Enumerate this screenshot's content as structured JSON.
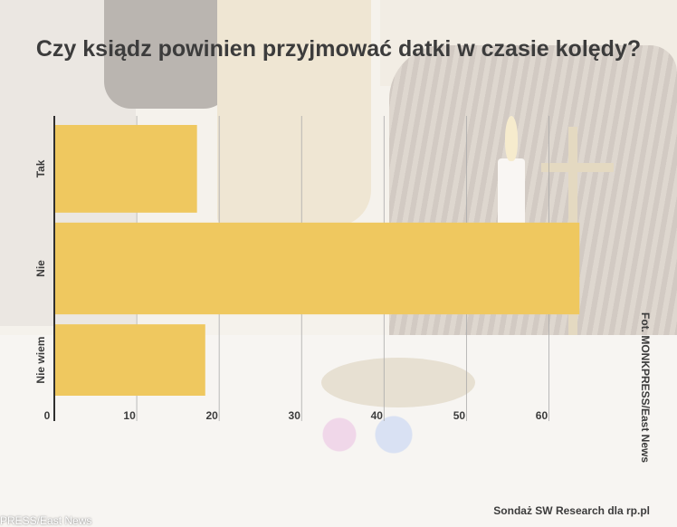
{
  "colors": {
    "bar": "#efc85f",
    "axis": "#2f2f2f",
    "grid": "#aaaaaa",
    "text": "#3c3c3c"
  },
  "photo_credit": "Fot. MONKPRESS/East News",
  "source": "Sondaż SW Research dla rp.pl",
  "watermark": "PRESS/East News",
  "chart_data": {
    "type": "bar",
    "orientation": "horizontal",
    "title": "Czy ksiądz powinien przyjmować datki w czasie kolędy?",
    "categories": [
      "Tak",
      "Nie",
      "Nie wiem"
    ],
    "values": [
      17.2,
      63.6,
      18.2
    ],
    "xlim": [
      0,
      65
    ],
    "xticks": [
      0,
      10,
      20,
      30,
      40,
      50,
      60
    ],
    "grid": true,
    "legend": "none"
  }
}
